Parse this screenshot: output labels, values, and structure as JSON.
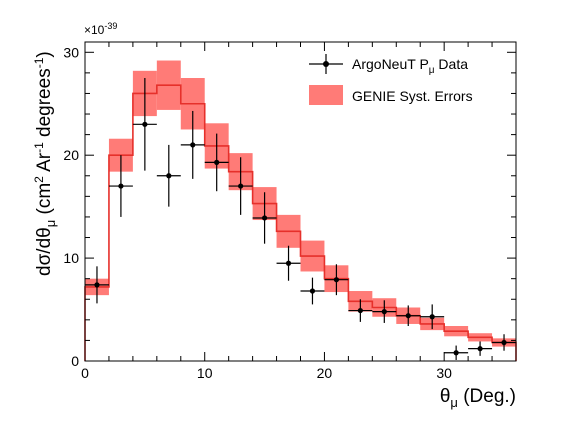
{
  "chart_data": {
    "type": "histogram",
    "title": "",
    "xlabel": {
      "main": "θ",
      "sub": "μ",
      "rest": " (Deg.)"
    },
    "ylabel": {
      "pre": "dσ/dθ",
      "sub": "μ",
      "mid1": " (cm",
      "sup1": "2",
      "mid2": " Ar",
      "sup2": "-1",
      "mid3": " degrees",
      "sup3": "-1",
      "post": ")"
    },
    "y_multiplier": {
      "base": "×10",
      "exp": "-39"
    },
    "xlim": [
      0,
      36
    ],
    "ylim": [
      0,
      31
    ],
    "xticks": [
      0,
      10,
      20,
      30
    ],
    "yticks": [
      0,
      10,
      20,
      30
    ],
    "legend_position": "top-right",
    "series": [
      {
        "name": "ArgoNeuT P",
        "name_sub": "μ",
        "name_post": " Data",
        "kind": "points",
        "x": [
          1,
          3,
          5,
          7,
          9,
          11,
          13,
          15,
          17,
          19,
          21,
          23,
          25,
          27,
          29,
          31,
          33,
          35
        ],
        "xerr": 1,
        "y": [
          7.4,
          17.0,
          23.0,
          18.0,
          21.0,
          19.3,
          17.0,
          13.9,
          9.5,
          6.8,
          7.9,
          4.9,
          4.8,
          4.4,
          4.3,
          0.8,
          1.2,
          1.8
        ],
        "yerr": [
          1.8,
          3.0,
          4.5,
          3.0,
          3.3,
          2.8,
          2.8,
          2.5,
          1.7,
          1.3,
          1.5,
          1.1,
          1.1,
          1.0,
          1.2,
          0.7,
          0.7,
          0.8
        ],
        "color": "#000000"
      },
      {
        "name": "GENIE Syst. Errors",
        "kind": "band-step",
        "bin_edges": [
          0,
          2,
          4,
          6,
          8,
          10,
          12,
          14,
          16,
          18,
          20,
          22,
          24,
          26,
          28,
          30,
          32,
          34,
          36
        ],
        "y": [
          7.2,
          20.0,
          26.0,
          26.8,
          25.0,
          20.9,
          18.4,
          15.3,
          12.6,
          10.2,
          8.0,
          5.8,
          5.2,
          4.4,
          3.6,
          2.9,
          2.3,
          1.8
        ],
        "band_halfwidth": [
          0.8,
          1.6,
          2.2,
          2.4,
          2.5,
          2.2,
          1.8,
          1.6,
          1.6,
          1.5,
          1.3,
          1.0,
          0.9,
          0.8,
          0.6,
          0.5,
          0.4,
          0.4
        ],
        "line_color": "#e6302b",
        "band_color": "#ff7b77"
      }
    ]
  }
}
